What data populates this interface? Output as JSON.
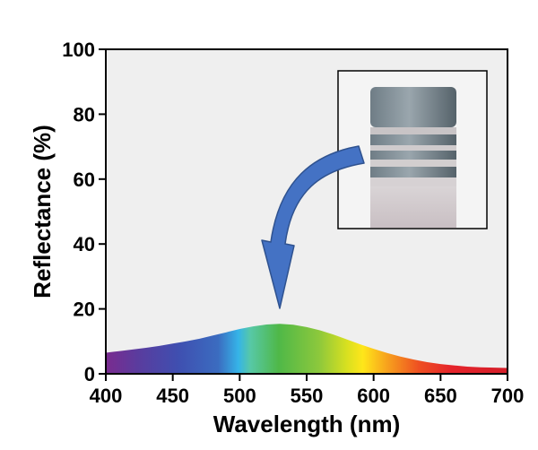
{
  "chart_data": {
    "type": "area",
    "xlabel": "Wavelength (nm)",
    "ylabel": "Reflectance (%)",
    "xlim": [
      400,
      700
    ],
    "ylim": [
      0,
      100
    ],
    "xticks": [
      400,
      450,
      500,
      550,
      600,
      650,
      700
    ],
    "yticks": [
      0,
      20,
      40,
      60,
      80,
      100
    ],
    "grid": false,
    "fill": "visible-spectrum gradient",
    "series": [
      {
        "x": [
          400,
          410,
          420,
          430,
          440,
          450,
          460,
          470,
          480,
          490,
          500,
          510,
          520,
          530,
          540,
          550,
          560,
          570,
          580,
          590,
          600,
          610,
          620,
          630,
          640,
          650,
          660,
          670,
          680,
          690,
          700
        ],
        "values": [
          6.5,
          7.0,
          7.5,
          8.0,
          8.6,
          9.3,
          10.0,
          10.8,
          11.8,
          12.8,
          13.8,
          14.6,
          15.2,
          15.4,
          15.1,
          14.4,
          13.4,
          12.1,
          10.6,
          9.1,
          7.7,
          6.4,
          5.3,
          4.4,
          3.6,
          3.0,
          2.6,
          2.2,
          2.0,
          1.9,
          1.8
        ]
      }
    ],
    "plot_background": "#efefef",
    "annotations": {
      "inset": "photo of coated cylindrical sample",
      "arrow_color": "#4472c4"
    }
  }
}
